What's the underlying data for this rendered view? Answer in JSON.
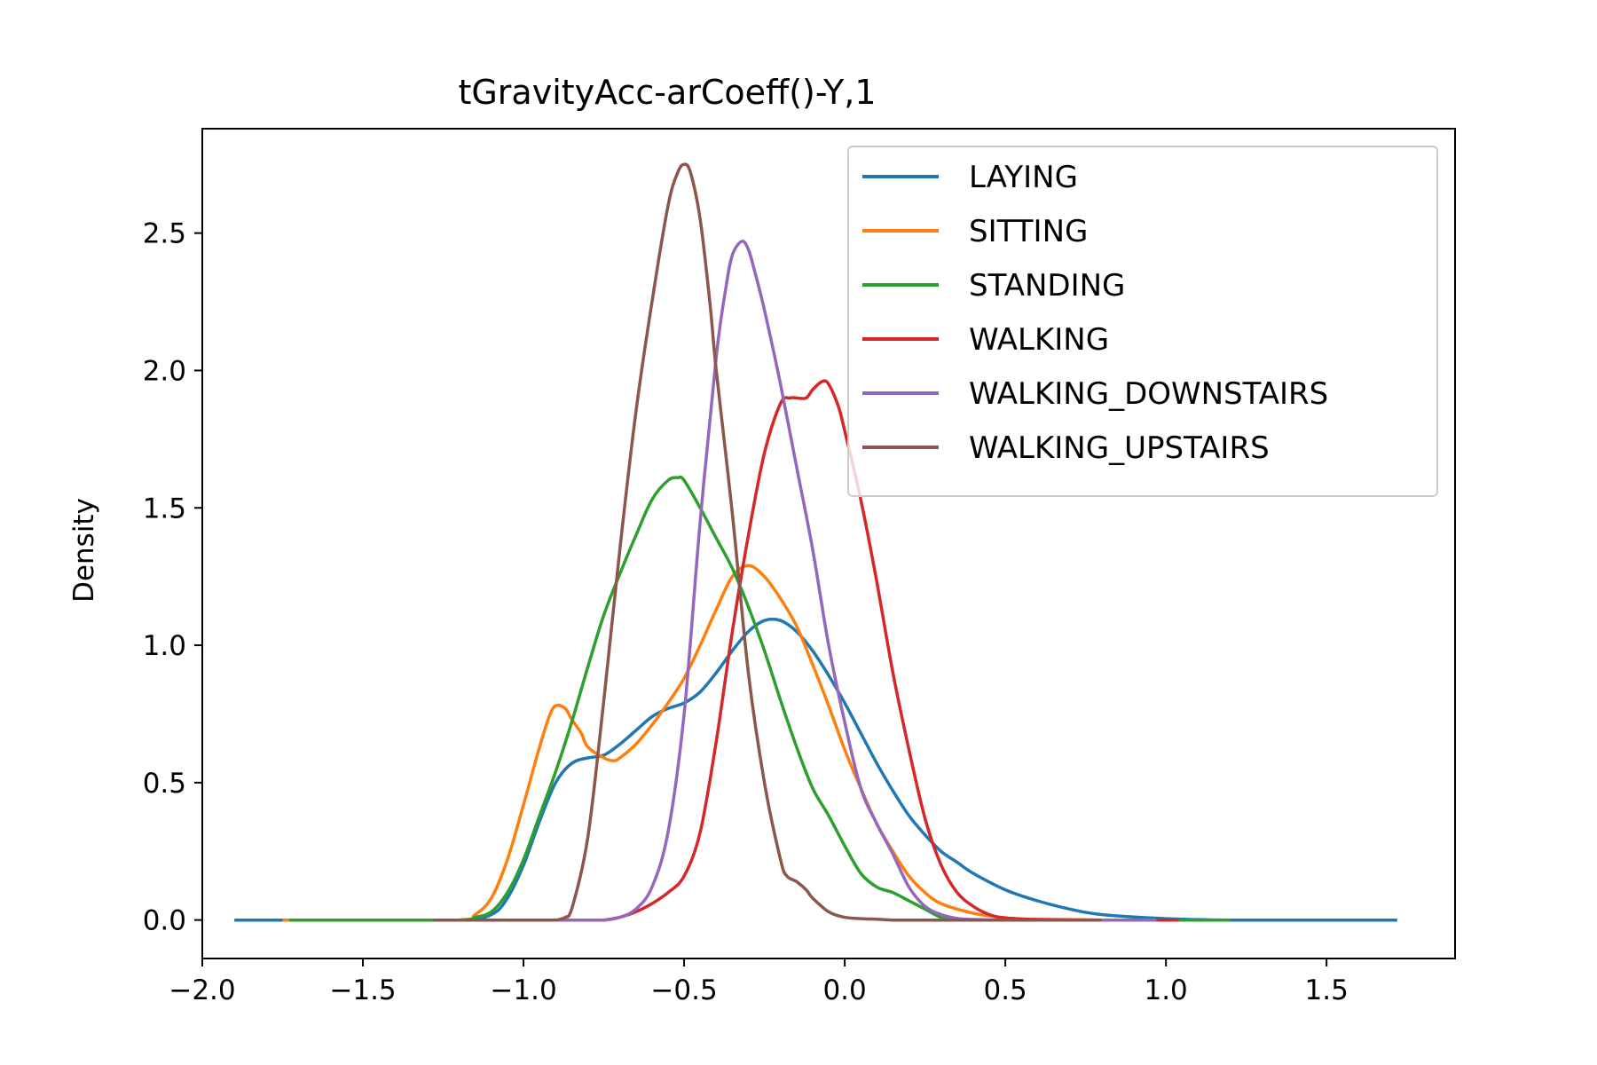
{
  "chart_data": {
    "type": "line",
    "title": "tGravityAcc-arCoeff()-Y,1",
    "xlabel": "",
    "ylabel": "Density",
    "xlim": [
      -2.0,
      1.9
    ],
    "ylim": [
      -0.14,
      2.88
    ],
    "xticks": [
      -2.0,
      -1.5,
      -1.0,
      -0.5,
      0.0,
      0.5,
      1.0,
      1.5
    ],
    "xtick_labels": [
      "−2.0",
      "−1.5",
      "−1.0",
      "−0.5",
      "0.0",
      "0.5",
      "1.0",
      "1.5"
    ],
    "yticks": [
      0.0,
      0.5,
      1.0,
      1.5,
      2.0,
      2.5
    ],
    "ytick_labels": [
      "0.0",
      "0.5",
      "1.0",
      "1.5",
      "2.0",
      "2.5"
    ],
    "grid": false,
    "legend_position": "top-right",
    "series": [
      {
        "name": "LAYING",
        "color": "#1f77b4",
        "x": [
          -1.9,
          -1.5,
          -1.2,
          -1.1,
          -1.05,
          -1.0,
          -0.95,
          -0.9,
          -0.85,
          -0.8,
          -0.75,
          -0.7,
          -0.65,
          -0.6,
          -0.55,
          -0.5,
          -0.45,
          -0.4,
          -0.35,
          -0.3,
          -0.25,
          -0.2,
          -0.15,
          -0.1,
          -0.05,
          0.0,
          0.05,
          0.1,
          0.15,
          0.2,
          0.25,
          0.3,
          0.35,
          0.4,
          0.5,
          0.6,
          0.7,
          0.8,
          1.0,
          1.2,
          1.5,
          1.72
        ],
        "y": [
          0.0,
          0.0,
          0.0,
          0.02,
          0.08,
          0.2,
          0.36,
          0.5,
          0.57,
          0.59,
          0.6,
          0.64,
          0.69,
          0.74,
          0.77,
          0.79,
          0.83,
          0.9,
          0.98,
          1.05,
          1.09,
          1.09,
          1.05,
          0.98,
          0.89,
          0.79,
          0.68,
          0.57,
          0.47,
          0.38,
          0.31,
          0.25,
          0.21,
          0.17,
          0.11,
          0.07,
          0.04,
          0.02,
          0.005,
          0.0,
          0.0,
          0.0
        ]
      },
      {
        "name": "SITTING",
        "color": "#ff7f0e",
        "x": [
          -1.75,
          -1.5,
          -1.2,
          -1.15,
          -1.1,
          -1.05,
          -1.0,
          -0.95,
          -0.92,
          -0.9,
          -0.87,
          -0.85,
          -0.82,
          -0.8,
          -0.75,
          -0.72,
          -0.7,
          -0.65,
          -0.6,
          -0.55,
          -0.5,
          -0.45,
          -0.4,
          -0.35,
          -0.3,
          -0.25,
          -0.2,
          -0.15,
          -0.1,
          -0.05,
          0.0,
          0.05,
          0.1,
          0.15,
          0.2,
          0.25,
          0.3,
          0.4,
          0.5,
          0.6,
          0.8,
          1.0,
          1.2
        ],
        "y": [
          0.0,
          0.0,
          0.0,
          0.02,
          0.08,
          0.22,
          0.42,
          0.63,
          0.74,
          0.78,
          0.77,
          0.73,
          0.68,
          0.63,
          0.59,
          0.58,
          0.59,
          0.64,
          0.71,
          0.79,
          0.88,
          1.0,
          1.13,
          1.25,
          1.29,
          1.25,
          1.17,
          1.07,
          0.93,
          0.78,
          0.62,
          0.48,
          0.35,
          0.25,
          0.16,
          0.1,
          0.06,
          0.025,
          0.008,
          0.002,
          0.0,
          0.0,
          0.0
        ]
      },
      {
        "name": "STANDING",
        "color": "#2ca02c",
        "x": [
          -1.73,
          -1.5,
          -1.2,
          -1.15,
          -1.1,
          -1.05,
          -1.0,
          -0.95,
          -0.9,
          -0.85,
          -0.8,
          -0.75,
          -0.7,
          -0.65,
          -0.6,
          -0.55,
          -0.52,
          -0.5,
          -0.45,
          -0.4,
          -0.35,
          -0.3,
          -0.25,
          -0.2,
          -0.15,
          -0.1,
          -0.05,
          0.0,
          0.05,
          0.1,
          0.15,
          0.2,
          0.25,
          0.3,
          0.35,
          0.4,
          0.5,
          0.6,
          0.8,
          1.0,
          1.2
        ],
        "y": [
          0.0,
          0.0,
          0.0,
          0.01,
          0.03,
          0.1,
          0.22,
          0.38,
          0.54,
          0.72,
          0.92,
          1.11,
          1.26,
          1.4,
          1.53,
          1.6,
          1.61,
          1.6,
          1.5,
          1.39,
          1.28,
          1.14,
          0.98,
          0.8,
          0.63,
          0.48,
          0.38,
          0.27,
          0.17,
          0.12,
          0.1,
          0.07,
          0.04,
          0.01,
          0.002,
          0.0,
          0.0,
          0.0,
          0.0,
          0.0,
          0.0
        ]
      },
      {
        "name": "WALKING",
        "color": "#d62728",
        "x": [
          -1.0,
          -0.9,
          -0.8,
          -0.75,
          -0.7,
          -0.65,
          -0.6,
          -0.55,
          -0.5,
          -0.45,
          -0.4,
          -0.35,
          -0.3,
          -0.25,
          -0.2,
          -0.17,
          -0.15,
          -0.12,
          -0.1,
          -0.07,
          -0.05,
          -0.02,
          0.0,
          0.05,
          0.1,
          0.15,
          0.2,
          0.25,
          0.3,
          0.35,
          0.4,
          0.45,
          0.5,
          0.6,
          0.8,
          1.04
        ],
        "y": [
          0.0,
          0.0,
          0.0,
          0.0,
          0.01,
          0.03,
          0.06,
          0.1,
          0.16,
          0.32,
          0.65,
          1.05,
          1.4,
          1.7,
          1.88,
          1.9,
          1.9,
          1.9,
          1.93,
          1.96,
          1.95,
          1.87,
          1.78,
          1.53,
          1.23,
          0.9,
          0.62,
          0.37,
          0.2,
          0.1,
          0.05,
          0.02,
          0.008,
          0.002,
          0.0,
          0.0
        ]
      },
      {
        "name": "WALKING_DOWNSTAIRS",
        "color": "#9467bd",
        "x": [
          -1.0,
          -0.8,
          -0.75,
          -0.7,
          -0.65,
          -0.6,
          -0.55,
          -0.5,
          -0.45,
          -0.4,
          -0.37,
          -0.35,
          -0.32,
          -0.3,
          -0.28,
          -0.25,
          -0.2,
          -0.15,
          -0.1,
          -0.05,
          0.0,
          0.05,
          0.1,
          0.15,
          0.2,
          0.25,
          0.3,
          0.35,
          0.4,
          0.5,
          0.6,
          0.8,
          0.97
        ],
        "y": [
          0.0,
          0.0,
          0.0,
          0.01,
          0.04,
          0.12,
          0.32,
          0.75,
          1.45,
          2.05,
          2.3,
          2.42,
          2.47,
          2.44,
          2.36,
          2.22,
          1.95,
          1.65,
          1.35,
          1.0,
          0.72,
          0.48,
          0.35,
          0.24,
          0.12,
          0.05,
          0.02,
          0.006,
          0.002,
          0.0,
          0.0,
          0.0,
          0.0
        ]
      },
      {
        "name": "WALKING_UPSTAIRS",
        "color": "#8c564b",
        "x": [
          -1.28,
          -1.1,
          -0.95,
          -0.9,
          -0.87,
          -0.85,
          -0.8,
          -0.75,
          -0.7,
          -0.65,
          -0.6,
          -0.55,
          -0.52,
          -0.5,
          -0.48,
          -0.45,
          -0.42,
          -0.4,
          -0.35,
          -0.3,
          -0.25,
          -0.2,
          -0.18,
          -0.15,
          -0.12,
          -0.1,
          -0.05,
          0.0,
          0.05,
          0.1,
          0.15,
          0.2,
          0.3,
          0.5,
          0.8
        ],
        "y": [
          0.0,
          0.0,
          0.0,
          0.0,
          0.01,
          0.04,
          0.3,
          0.8,
          1.35,
          1.85,
          2.25,
          2.6,
          2.72,
          2.75,
          2.72,
          2.55,
          2.25,
          2.0,
          1.48,
          0.9,
          0.5,
          0.22,
          0.16,
          0.14,
          0.11,
          0.08,
          0.03,
          0.01,
          0.005,
          0.003,
          0.0,
          0.0,
          0.0,
          0.0,
          0.0
        ]
      }
    ]
  }
}
